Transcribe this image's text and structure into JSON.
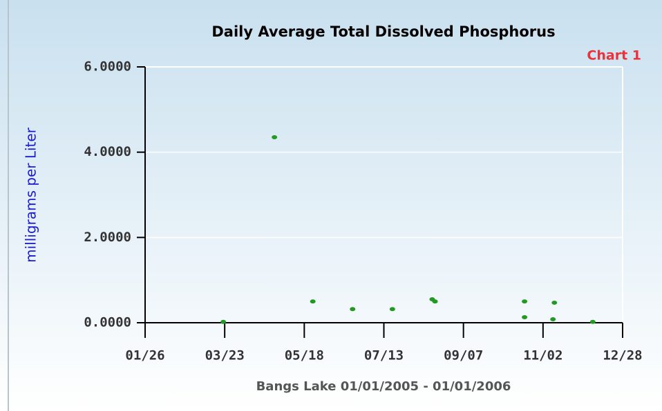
{
  "chart_data": {
    "type": "scatter",
    "title": "Daily Average Total Dissolved Phosphorus",
    "annotation": "Chart 1",
    "ylabel": "milligrams per Liter",
    "xlabel": "Bangs Lake 01/01/2005 - 01/01/2006",
    "color": "#229922",
    "x": [
      81,
      117,
      144,
      172,
      200,
      228,
      230,
      293,
      293,
      313,
      314,
      341
    ],
    "y": [
      0.02,
      4.35,
      0.5,
      0.32,
      0.32,
      0.55,
      0.5,
      0.5,
      0.13,
      0.08,
      0.47,
      0.02
    ],
    "xlim": [
      26,
      362
    ],
    "xticks": [
      {
        "value": 26,
        "label": "01/26"
      },
      {
        "value": 82,
        "label": "03/23"
      },
      {
        "value": 138,
        "label": "05/18"
      },
      {
        "value": 194,
        "label": "07/13"
      },
      {
        "value": 250,
        "label": "09/07"
      },
      {
        "value": 306,
        "label": "11/02"
      },
      {
        "value": 362,
        "label": "12/28"
      }
    ],
    "ylim": [
      0,
      6
    ],
    "yticks": [
      {
        "value": 0,
        "label": "0.0000"
      },
      {
        "value": 2,
        "label": "2.0000"
      },
      {
        "value": 4,
        "label": "4.0000"
      },
      {
        "value": 6,
        "label": "6.0000"
      }
    ],
    "grid": true
  }
}
